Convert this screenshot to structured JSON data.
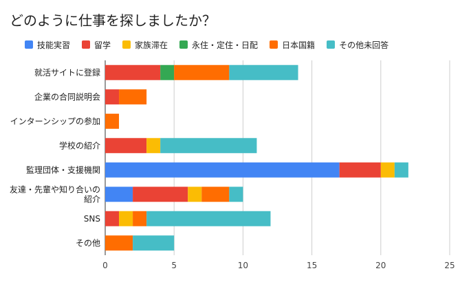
{
  "chart_data": {
    "type": "bar",
    "orientation": "horizontal",
    "stacked": true,
    "title": "どのように仕事を探しましたか？",
    "xlabel": "",
    "ylabel": "",
    "xlim": [
      0,
      25
    ],
    "x_ticks": [
      "0",
      "5",
      "10",
      "15",
      "20",
      "25"
    ],
    "grid": true,
    "legend_position": "top",
    "categories": [
      "就活サイトに登録",
      "企業の合同説明会",
      "インターンシップの参加",
      "学校の紹介",
      "監理団体・支援機関",
      "友達・先輩や知り合いの紹介",
      "SNS",
      "その他"
    ],
    "series": [
      {
        "name": "技能実習",
        "color": "#4285F4",
        "values": [
          0,
          0,
          0,
          0,
          17,
          2,
          0,
          0
        ]
      },
      {
        "name": "留学",
        "color": "#EA4335",
        "values": [
          4,
          1,
          0,
          3,
          3,
          4,
          1,
          0
        ]
      },
      {
        "name": "家族滞在",
        "color": "#FBBC04",
        "values": [
          0,
          0,
          0,
          1,
          1,
          1,
          1,
          0
        ]
      },
      {
        "name": "永住・定住・日配",
        "color": "#34A853",
        "values": [
          1,
          0,
          0,
          0,
          0,
          0,
          0,
          0
        ]
      },
      {
        "name": "日本国籍",
        "color": "#FF6D01",
        "values": [
          4,
          2,
          1,
          0,
          0,
          2,
          1,
          2
        ]
      },
      {
        "name": "その他未回答",
        "color": "#46BDC6",
        "values": [
          5,
          0,
          0,
          7,
          1,
          1,
          9,
          3
        ]
      }
    ]
  }
}
